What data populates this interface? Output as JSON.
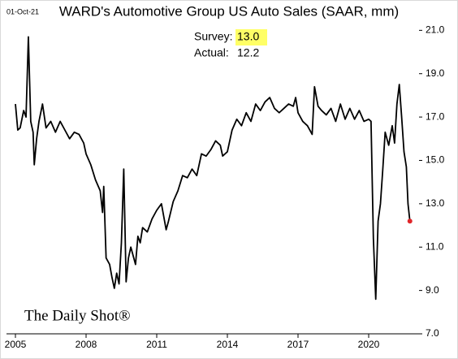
{
  "chart_data": {
    "type": "line",
    "title": "WARD's Automotive Group US Auto Sales (SAAR, mm)",
    "date_label": "01-Oct-21",
    "annotation": {
      "survey_label": "Survey:",
      "survey_value": "13.0",
      "actual_label": "Actual:",
      "actual_value": "12.2"
    },
    "watermark": "The Daily Shot®",
    "color": "#000000",
    "highlight_color": "#e0262a",
    "survey_highlight": "#ffff66",
    "x": [
      2005.0,
      2005.1,
      2005.2,
      2005.35,
      2005.45,
      2005.55,
      2005.65,
      2005.75,
      2005.8,
      2005.9,
      2006.0,
      2006.15,
      2006.3,
      2006.5,
      2006.7,
      2006.9,
      2007.1,
      2007.3,
      2007.5,
      2007.7,
      2007.9,
      2008.0,
      2008.2,
      2008.4,
      2008.6,
      2008.7,
      2008.75,
      2008.85,
      2009.0,
      2009.1,
      2009.2,
      2009.3,
      2009.4,
      2009.5,
      2009.6,
      2009.7,
      2009.8,
      2009.9,
      2010.1,
      2010.2,
      2010.3,
      2010.4,
      2010.6,
      2010.8,
      2011.0,
      2011.2,
      2011.4,
      2011.5,
      2011.7,
      2011.9,
      2012.1,
      2012.3,
      2012.5,
      2012.7,
      2012.9,
      2013.1,
      2013.3,
      2013.5,
      2013.7,
      2013.8,
      2014.0,
      2014.2,
      2014.4,
      2014.6,
      2014.8,
      2015.0,
      2015.2,
      2015.4,
      2015.6,
      2015.8,
      2016.0,
      2016.2,
      2016.4,
      2016.6,
      2016.8,
      2016.9,
      2017.0,
      2017.2,
      2017.4,
      2017.6,
      2017.7,
      2017.85,
      2018.0,
      2018.2,
      2018.4,
      2018.6,
      2018.8,
      2019.0,
      2019.2,
      2019.4,
      2019.6,
      2019.8,
      2020.0,
      2020.1,
      2020.2,
      2020.3,
      2020.4,
      2020.5,
      2020.6,
      2020.7,
      2020.85,
      2021.0,
      2021.1,
      2021.2,
      2021.3,
      2021.4,
      2021.5,
      2021.6,
      2021.67,
      2021.75
    ],
    "values": [
      17.6,
      16.4,
      16.5,
      17.3,
      17.0,
      20.7,
      16.8,
      16.3,
      14.8,
      16.0,
      16.8,
      17.6,
      16.5,
      16.8,
      16.3,
      16.8,
      16.4,
      16.0,
      16.3,
      16.2,
      15.8,
      15.3,
      14.8,
      14.1,
      13.6,
      12.6,
      13.8,
      10.5,
      10.2,
      9.6,
      9.1,
      9.8,
      9.3,
      11.2,
      14.6,
      9.4,
      10.5,
      11.0,
      10.2,
      11.5,
      11.2,
      11.9,
      11.7,
      12.3,
      12.7,
      13.0,
      11.8,
      12.2,
      13.1,
      13.6,
      14.3,
      14.2,
      14.6,
      14.3,
      15.3,
      15.2,
      15.5,
      15.9,
      15.7,
      15.2,
      15.4,
      16.4,
      16.9,
      16.6,
      17.2,
      16.8,
      17.6,
      17.3,
      17.7,
      17.9,
      17.4,
      17.2,
      17.4,
      17.6,
      17.5,
      17.9,
      17.2,
      16.8,
      16.6,
      16.2,
      18.4,
      17.5,
      17.3,
      17.1,
      17.4,
      16.8,
      17.6,
      16.9,
      17.4,
      16.9,
      17.3,
      16.8,
      16.9,
      16.8,
      11.4,
      8.6,
      12.2,
      13.0,
      14.6,
      16.3,
      15.7,
      16.6,
      15.8,
      17.6,
      18.5,
      17.0,
      15.4,
      14.7,
      13.0,
      12.2
    ],
    "xlim": [
      2005,
      2022
    ],
    "xticks": [
      2005,
      2008,
      2011,
      2014,
      2017,
      2020
    ],
    "ylim": [
      7,
      21.5
    ],
    "yticks": [
      {
        "value": 7,
        "label": "7.0"
      },
      {
        "value": 9,
        "label": "9.0"
      },
      {
        "value": 11,
        "label": "11.0"
      },
      {
        "value": 13,
        "label": "13.0"
      },
      {
        "value": 15,
        "label": "15.0"
      },
      {
        "value": 17,
        "label": "17.0"
      },
      {
        "value": 19,
        "label": "19.0"
      },
      {
        "value": 21,
        "label": "21.0"
      }
    ],
    "grid": false
  }
}
